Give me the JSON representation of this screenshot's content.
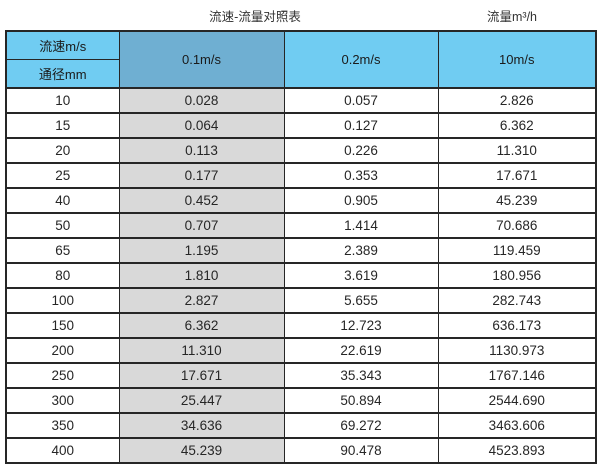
{
  "titles": {
    "main": "流速-流量对照表",
    "unit": "流量m³/h"
  },
  "table": {
    "corner": {
      "top": "流速m/s",
      "bottom": "通径mm"
    },
    "velocity_columns": [
      "0.1m/s",
      "0.2m/s",
      "10m/s"
    ],
    "rows": [
      {
        "dn": "10",
        "values": [
          "0.028",
          "0.057",
          "2.826"
        ]
      },
      {
        "dn": "15",
        "values": [
          "0.064",
          "0.127",
          "6.362"
        ]
      },
      {
        "dn": "20",
        "values": [
          "0.113",
          "0.226",
          "11.310"
        ]
      },
      {
        "dn": "25",
        "values": [
          "0.177",
          "0.353",
          "17.671"
        ]
      },
      {
        "dn": "40",
        "values": [
          "0.452",
          "0.905",
          "45.239"
        ]
      },
      {
        "dn": "50",
        "values": [
          "0.707",
          "1.414",
          "70.686"
        ]
      },
      {
        "dn": "65",
        "values": [
          "1.195",
          "2.389",
          "119.459"
        ]
      },
      {
        "dn": "80",
        "values": [
          "1.810",
          "3.619",
          "180.956"
        ]
      },
      {
        "dn": "100",
        "values": [
          "2.827",
          "5.655",
          "282.743"
        ]
      },
      {
        "dn": "150",
        "values": [
          "6.362",
          "12.723",
          "636.173"
        ]
      },
      {
        "dn": "200",
        "values": [
          "11.310",
          "22.619",
          "1130.973"
        ]
      },
      {
        "dn": "250",
        "values": [
          "17.671",
          "35.343",
          "1767.146"
        ]
      },
      {
        "dn": "300",
        "values": [
          "25.447",
          "50.894",
          "2544.690"
        ]
      },
      {
        "dn": "350",
        "values": [
          "34.636",
          "69.272",
          "3463.606"
        ]
      },
      {
        "dn": "400",
        "values": [
          "45.239",
          "90.478",
          "4523.893"
        ]
      }
    ]
  },
  "colors": {
    "header_cyan": "#70CCF2",
    "header_highlight_blue": "#6FAFD2",
    "column_highlight_gray": "#D9D9D9",
    "border": "#262626"
  },
  "chart_data": {
    "type": "table",
    "title": "流速-流量对照表",
    "unit_label": "流量m³/h",
    "columns": [
      "通径mm",
      "0.1m/s",
      "0.2m/s",
      "10m/s"
    ],
    "rows": [
      [
        "10",
        0.028,
        0.057,
        2.826
      ],
      [
        "15",
        0.064,
        0.127,
        6.362
      ],
      [
        "20",
        0.113,
        0.226,
        11.31
      ],
      [
        "25",
        0.177,
        0.353,
        17.671
      ],
      [
        "40",
        0.452,
        0.905,
        45.239
      ],
      [
        "50",
        0.707,
        1.414,
        70.686
      ],
      [
        "65",
        1.195,
        2.389,
        119.459
      ],
      [
        "80",
        1.81,
        3.619,
        180.956
      ],
      [
        "100",
        2.827,
        5.655,
        282.743
      ],
      [
        "150",
        6.362,
        12.723,
        636.173
      ],
      [
        "200",
        11.31,
        22.619,
        1130.973
      ],
      [
        "250",
        17.671,
        35.343,
        1767.146
      ],
      [
        "300",
        25.447,
        50.894,
        2544.69
      ],
      [
        "350",
        34.636,
        69.272,
        3463.606
      ],
      [
        "400",
        45.239,
        90.478,
        4523.893
      ]
    ],
    "layout_hints": {
      "highlighted_column": "0.1m/s",
      "row_header_column": "通径mm",
      "velocity_unit": "m/s",
      "flow_unit": "m³/h"
    }
  }
}
